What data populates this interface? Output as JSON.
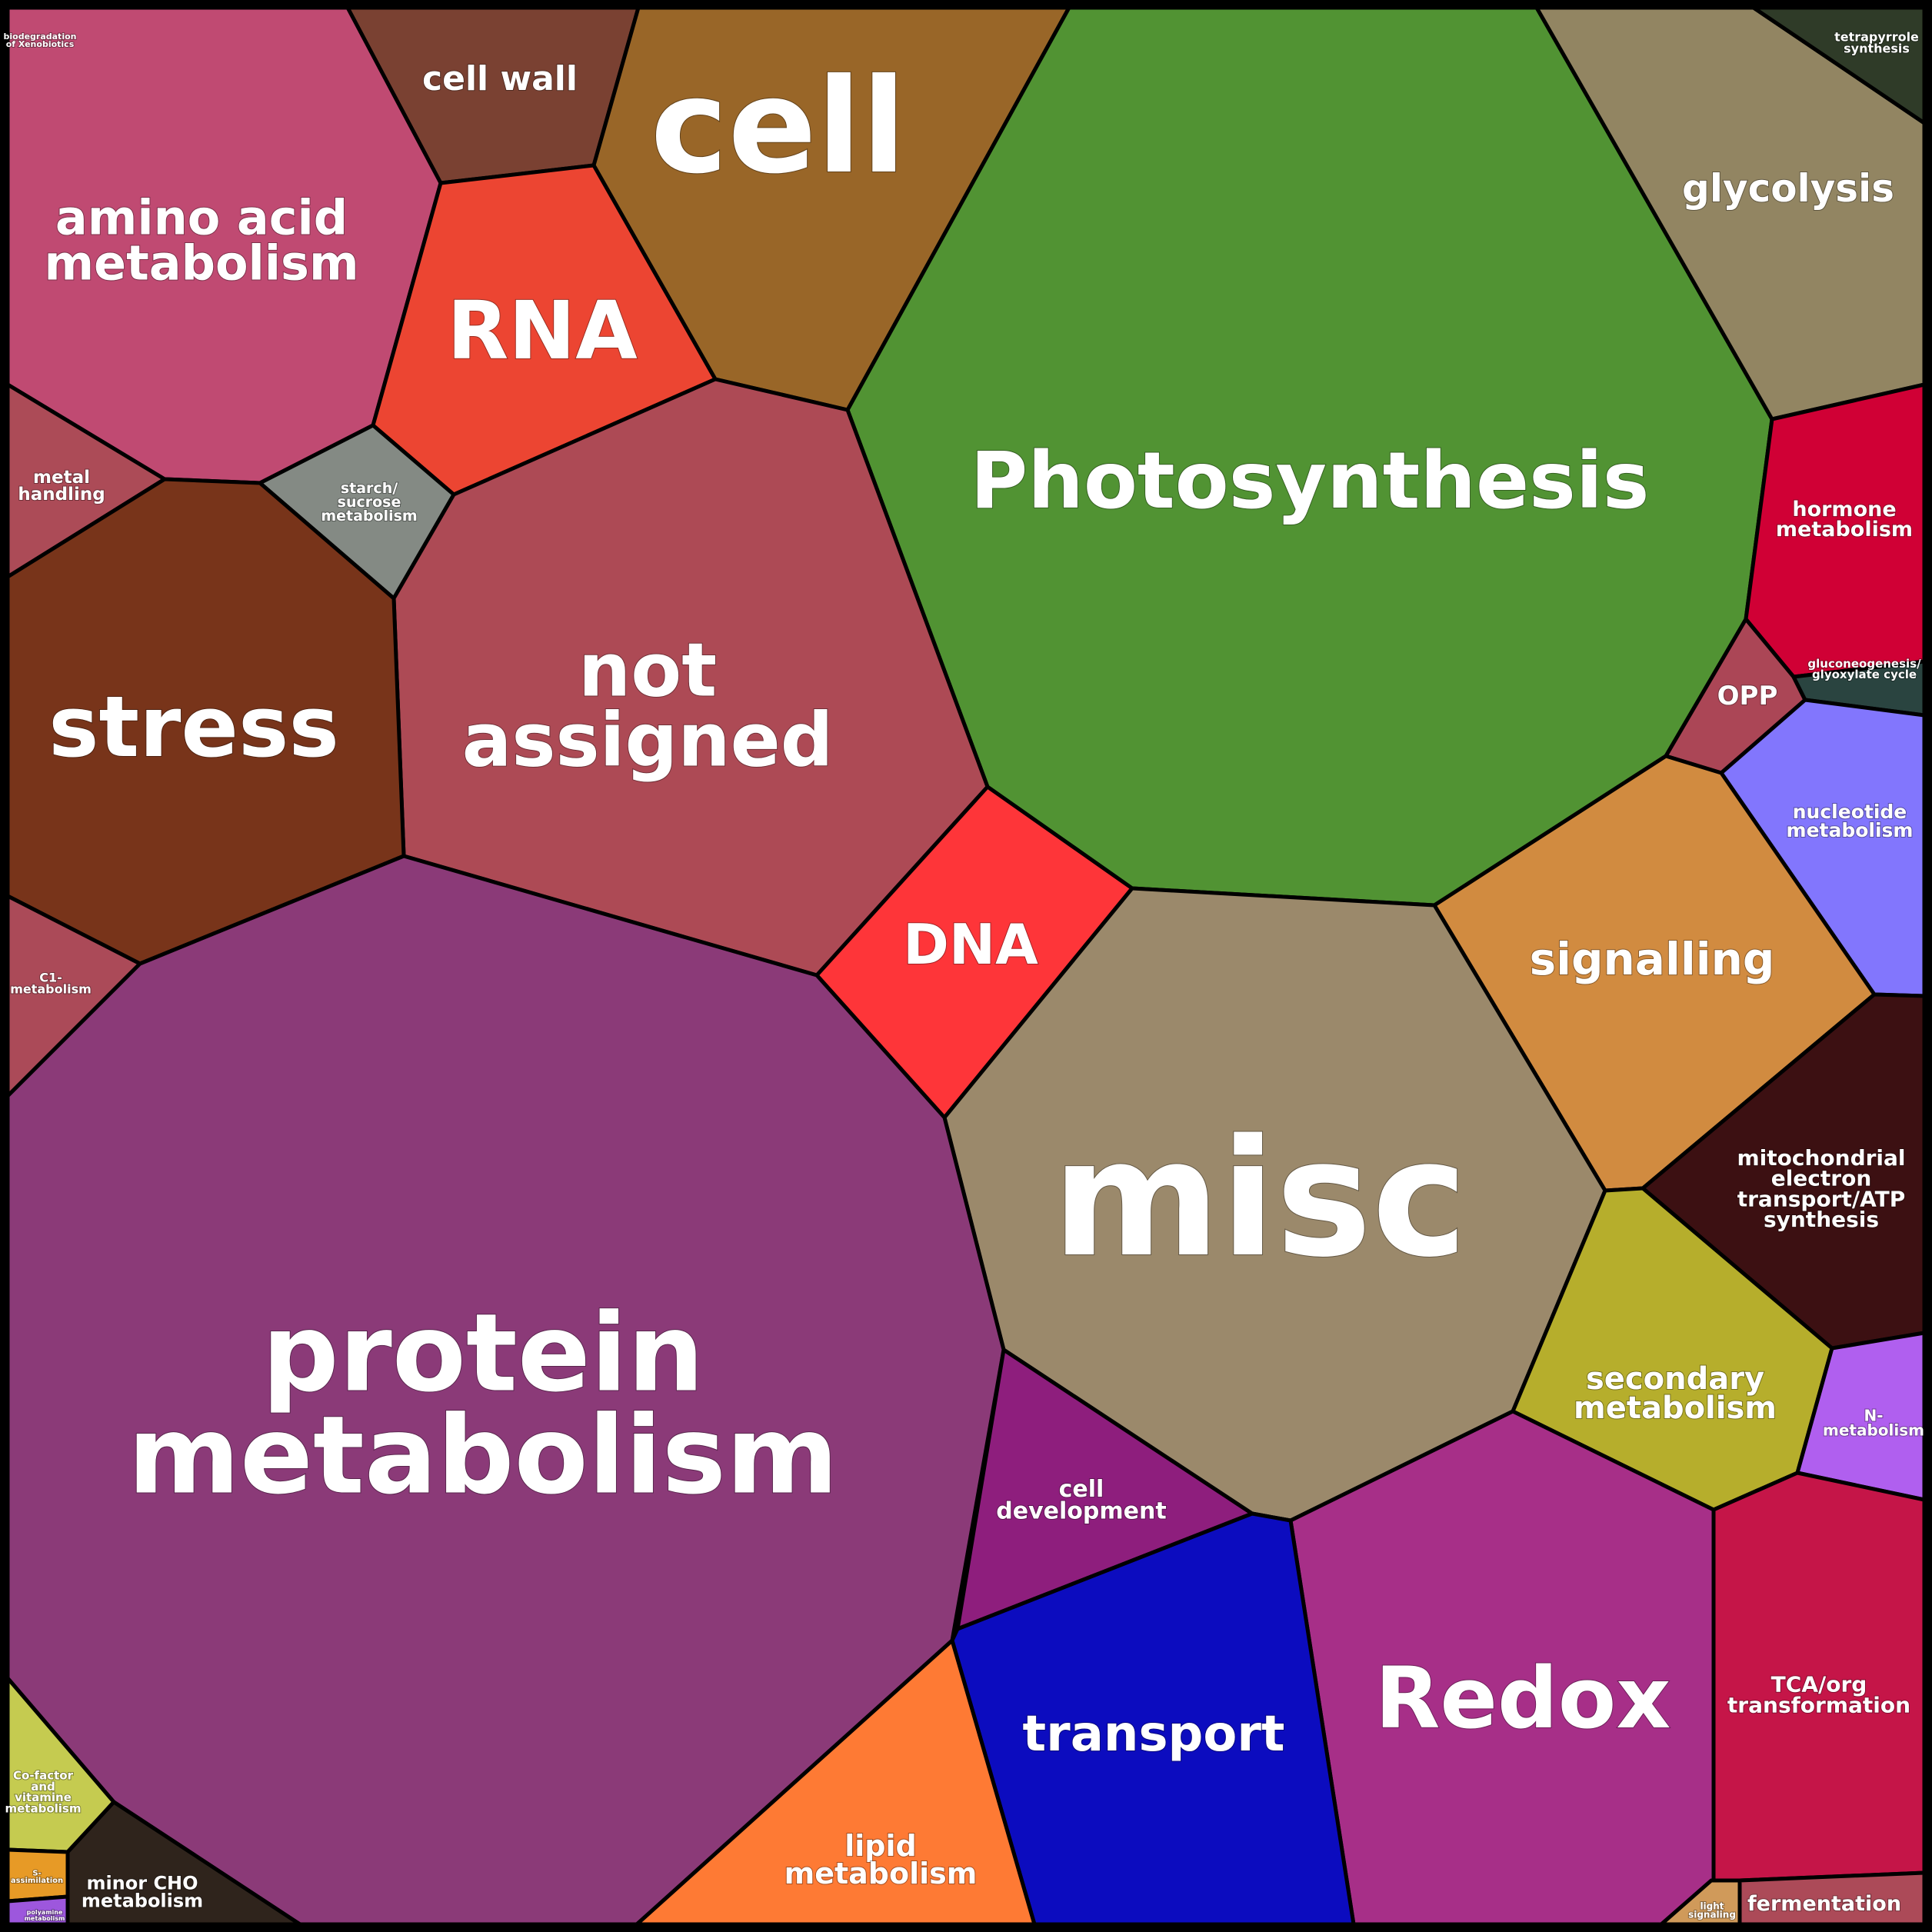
{
  "diagram": {
    "type": "voronoi-treemap",
    "cells": [
      {
        "id": "biodegradation",
        "lines": [
          "biodegradation",
          "of Xenobiotics"
        ],
        "color": "#14d2b4"
      },
      {
        "id": "cell-wall",
        "lines": [
          "cell wall"
        ],
        "color": "#7a4132"
      },
      {
        "id": "cell",
        "lines": [
          "cell"
        ],
        "color": "#996628"
      },
      {
        "id": "photosynthesis",
        "lines": [
          "Photosynthesis"
        ],
        "color": "#519333"
      },
      {
        "id": "glycolysis",
        "lines": [
          "glycolysis"
        ],
        "color": "#928562"
      },
      {
        "id": "tetrapyrrole",
        "lines": [
          "tetrapyrrole",
          "synthesis"
        ],
        "color": "#2f3b28"
      },
      {
        "id": "amino-acid",
        "lines": [
          "amino acid",
          "metabolism"
        ],
        "color": "#c04a72"
      },
      {
        "id": "rna",
        "lines": [
          "RNA"
        ],
        "color": "#ec4532"
      },
      {
        "id": "metal-handling",
        "lines": [
          "metal",
          "handling"
        ],
        "color": "#ac4b57"
      },
      {
        "id": "starch",
        "lines": [
          "starch/",
          "sucrose",
          "metabolism"
        ],
        "color": "#848a84"
      },
      {
        "id": "not-assigned",
        "lines": [
          "not",
          "assigned"
        ],
        "color": "#ad4a55"
      },
      {
        "id": "hormone",
        "lines": [
          "hormone",
          "metabolism"
        ],
        "color": "#d00035"
      },
      {
        "id": "stress",
        "lines": [
          "stress"
        ],
        "color": "#78341a"
      },
      {
        "id": "opp",
        "lines": [
          "OPP"
        ],
        "color": "#ab4656"
      },
      {
        "id": "gluconeogenesis",
        "lines": [
          "gluconeogenesis/",
          "glyoxylate cycle"
        ],
        "color": "#2a4440"
      },
      {
        "id": "nucleotide",
        "lines": [
          "nucleotide",
          "metabolism"
        ],
        "color": "#8276fd"
      },
      {
        "id": "c1",
        "lines": [
          "C1-",
          "metabolism"
        ],
        "color": "#ab4a58"
      },
      {
        "id": "dna",
        "lines": [
          "DNA"
        ],
        "color": "#fe3539"
      },
      {
        "id": "signalling",
        "lines": [
          "signalling"
        ],
        "color": "#d18b40"
      },
      {
        "id": "misc",
        "lines": [
          "misc"
        ],
        "color": "#9b896b"
      },
      {
        "id": "mito",
        "lines": [
          "mitochondrial",
          "electron",
          "transport/ATP",
          "synthesis"
        ],
        "color": "#3c1012"
      },
      {
        "id": "protein",
        "lines": [
          "protein",
          "metabolism"
        ],
        "color": "#8b3a78"
      },
      {
        "id": "secondary",
        "lines": [
          "secondary",
          "metabolism"
        ],
        "color": "#b6ae2c"
      },
      {
        "id": "n-metabolism",
        "lines": [
          "N-",
          "metabolism"
        ],
        "color": "#b05fef"
      },
      {
        "id": "cell-development",
        "lines": [
          "cell",
          "development"
        ],
        "color": "#8e1e7d"
      },
      {
        "id": "redox",
        "lines": [
          "Redox"
        ],
        "color": "#a72f88"
      },
      {
        "id": "tca",
        "lines": [
          "TCA/org",
          "transformation"
        ],
        "color": "#c51548"
      },
      {
        "id": "transport",
        "lines": [
          "transport"
        ],
        "color": "#0c0cbf"
      },
      {
        "id": "cofactor",
        "lines": [
          "Co-factor",
          "and",
          "vitamine",
          "metabolism"
        ],
        "color": "#c5cb50"
      },
      {
        "id": "minor-cho",
        "lines": [
          "minor CHO",
          "metabolism"
        ],
        "color": "#2f241c"
      },
      {
        "id": "s-assimilation",
        "lines": [
          "S-",
          "assimilation"
        ],
        "color": "#e79a26"
      },
      {
        "id": "polyamine",
        "lines": [
          "polyamine",
          "metabolism"
        ],
        "color": "#9d57dd"
      },
      {
        "id": "lipid",
        "lines": [
          "lipid",
          "metabolism"
        ],
        "color": "#fe7a34"
      },
      {
        "id": "light-signaling",
        "lines": [
          "light",
          "signaling"
        ],
        "color": "#d09a5a"
      },
      {
        "id": "fermentation",
        "lines": [
          "fermentation"
        ],
        "color": "#ac4a58"
      }
    ]
  }
}
